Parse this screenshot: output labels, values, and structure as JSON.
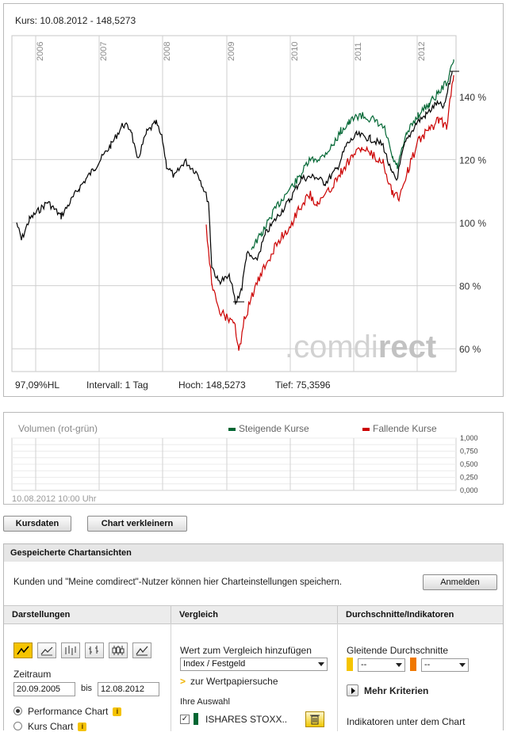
{
  "chart": {
    "header": "Kurs: 10.08.2012 - 148,5273",
    "years": [
      "2006",
      "2007",
      "2008",
      "2009",
      "2010",
      "2011",
      "2012"
    ],
    "y_labels": [
      "140 %",
      "120 %",
      "100 %",
      "80 %",
      "60 %"
    ],
    "watermark_main": ".comdi",
    "watermark_rest": "rect",
    "stats": {
      "hl": "97,09%HL",
      "interval": "Intervall: 1 Tag",
      "hoch": "Hoch: 148,5273",
      "tief": "Tief: 75,3596"
    },
    "colors": {
      "price": "#000000",
      "rising": "#006633",
      "falling": "#cc0000"
    }
  },
  "volume": {
    "title": "Volumen (rot-grün)",
    "legend_rising": "Steigende Kurse",
    "legend_falling": "Fallende Kurse",
    "y_labels": [
      "1,000",
      "0,750",
      "0,500",
      "0,250",
      "0,000"
    ],
    "timestamp": "10.08.2012 10:00 Uhr"
  },
  "buttons": {
    "kursdaten": "Kursdaten",
    "verkleinern": "Chart verkleinern"
  },
  "saved": {
    "title": "Gespeicherte Chartansichten",
    "text": "Kunden und \"Meine comdirect\"-Nutzer können hier Charteinstellungen speichern.",
    "login": "Anmelden"
  },
  "columns": {
    "darstellungen": "Darstellungen",
    "vergleich": "Vergleich",
    "indikatoren": "Durchschnitte/Indikatoren"
  },
  "darstellungen": {
    "chart_types": [
      "line-chart-icon",
      "mountain-chart-icon",
      "ohlc-chart-icon",
      "bar-chart-icon",
      "candlestick-chart-icon",
      "area-chart-icon"
    ],
    "zeitraum_label": "Zeitraum",
    "from": "20.09.2005",
    "bis": "bis",
    "to": "12.08.2012",
    "performance": "Performance Chart",
    "kurs": "Kurs Chart"
  },
  "vergleich": {
    "add_label": "Wert zum Vergleich hinzufügen",
    "select": "Index / Festgeld",
    "search_link": "zur Wertpapiersuche",
    "auswahl": "Ihre Auswahl",
    "item": "ISHARES STOXX.."
  },
  "indikatoren": {
    "gd_label": "Gleitende Durchschnitte",
    "gd1": "--",
    "gd2": "--",
    "mehr": "Mehr Kriterien",
    "unter": "Indikatoren unter dem Chart"
  }
}
